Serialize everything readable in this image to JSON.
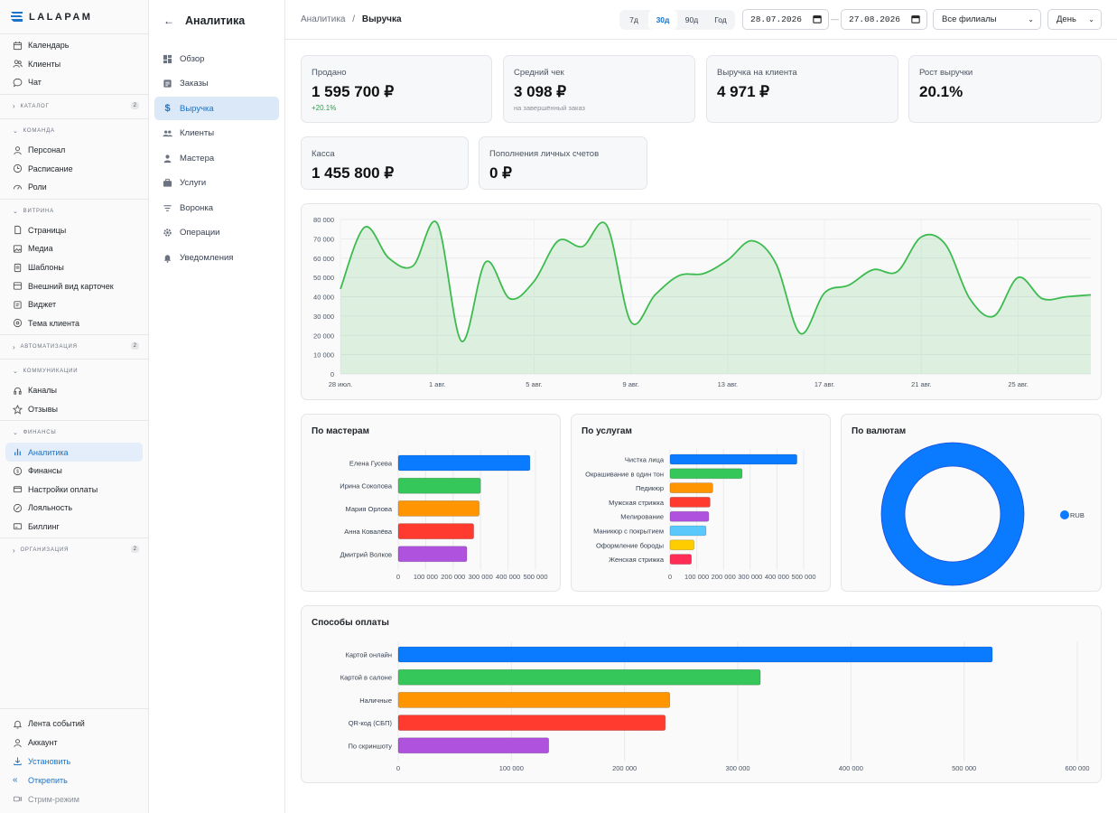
{
  "brand": {
    "name": "LALAPAM"
  },
  "nav": {
    "items_top": [
      {
        "label": "Календарь",
        "icon": "calendar-icon"
      },
      {
        "label": "Клиенты",
        "icon": "users-icon"
      },
      {
        "label": "Чат",
        "icon": "chat-icon"
      }
    ],
    "catalog": {
      "label": "КАТАЛОГ",
      "count": "2"
    },
    "team": {
      "label": "КОМАНДА",
      "items": [
        "Персонал",
        "Расписание",
        "Роли"
      ]
    },
    "showcase": {
      "label": "ВИТРИНА",
      "items": [
        "Страницы",
        "Медиа",
        "Шаблоны",
        "Внешний вид карточек",
        "Виджет",
        "Тема клиента"
      ]
    },
    "automation": {
      "label": "АВТОМАТИЗАЦИЯ",
      "count": "2"
    },
    "communications": {
      "label": "КОММУНИКАЦИИ",
      "items": [
        "Каналы",
        "Отзывы"
      ]
    },
    "finance": {
      "label": "ФИНАНСЫ",
      "items": [
        "Аналитика",
        "Финансы",
        "Настройки оплаты",
        "Лояльность",
        "Биллинг"
      ]
    },
    "organization": {
      "label": "ОРГАНИЗАЦИЯ",
      "count": "2"
    },
    "bottom": {
      "events": "Лента событий",
      "account": "Аккаунт",
      "install": "Установить",
      "unpin": "Открепить",
      "stream": "Стрим-режим"
    }
  },
  "subnav": {
    "title": "Аналитика",
    "items": [
      "Обзор",
      "Заказы",
      "Выручка",
      "Клиенты",
      "Мастера",
      "Услуги",
      "Воронка",
      "Операции",
      "Уведомления"
    ],
    "active": "Выручка"
  },
  "topbar": {
    "crumb_parent": "Аналитика",
    "crumb_sep": "/",
    "crumb_current": "Выручка",
    "periods": [
      "7д",
      "30д",
      "90д",
      "Год"
    ],
    "active_period": "30д",
    "date_from": "28.07.2026",
    "date_to": "27.08.2026",
    "date_sep": "—",
    "branch": "Все филиалы",
    "granularity": "День"
  },
  "kpis": {
    "sold": {
      "label": "Продано",
      "value": "1 595 700 ₽",
      "delta": "+20.1%"
    },
    "avg_check": {
      "label": "Средний чек",
      "value": "3 098 ₽",
      "note": "на завершённый заказ"
    },
    "per_client": {
      "label": "Выручка на клиента",
      "value": "4 971 ₽"
    },
    "growth": {
      "label": "Рост выручки",
      "value": "20.1%"
    },
    "cash": {
      "label": "Касса",
      "value": "1 455 800 ₽"
    },
    "topups": {
      "label": "Пополнения личных счетов",
      "value": "0 ₽"
    }
  },
  "colors": {
    "accent": "#1a73c8",
    "line": "#3dbb4f",
    "blue": "#0a7aff",
    "green": "#35c759",
    "orange": "#ff9500",
    "red": "#ff3b30",
    "purple": "#af52de",
    "sky": "#5ac8fa",
    "yellow": "#ffcc00",
    "pink": "#ff2d55"
  },
  "chart_data": [
    {
      "type": "area",
      "x_ticks": [
        "28 июл.",
        "1 авг.",
        "5 авг.",
        "9 авг.",
        "13 авг.",
        "17 авг.",
        "21 авг.",
        "25 авг."
      ],
      "y_ticks": [
        "0",
        "10 000",
        "20 000",
        "30 000",
        "40 000",
        "50 000",
        "60 000",
        "70 000",
        "80 000"
      ],
      "ylim": [
        0,
        80000
      ],
      "x": [
        "28 июл.",
        "29 июл.",
        "30 июл.",
        "31 июл.",
        "1 авг.",
        "2 авг.",
        "3 авг.",
        "4 авг.",
        "5 авг.",
        "6 авг.",
        "7 авг.",
        "8 авг.",
        "9 авг.",
        "10 авг.",
        "11 авг.",
        "12 авг.",
        "13 авг.",
        "14 авг.",
        "15 авг.",
        "16 авг.",
        "17 авг.",
        "18 авг.",
        "19 авг.",
        "20 авг.",
        "21 авг.",
        "22 авг.",
        "23 авг.",
        "24 авг.",
        "25 авг.",
        "26 авг.",
        "27 авг.",
        "28 авг."
      ],
      "values": [
        44000,
        76000,
        60000,
        56000,
        78000,
        17000,
        58000,
        39000,
        48000,
        69000,
        66000,
        77000,
        27000,
        41000,
        51000,
        52000,
        59000,
        69000,
        57000,
        21000,
        42000,
        46000,
        54000,
        53000,
        71000,
        67000,
        39000,
        30000,
        50000,
        39000,
        40000,
        41000
      ],
      "grid": true
    },
    {
      "type": "bar",
      "title": "По мастерам",
      "categories": [
        "Елена Гусева",
        "Ирина Соколова",
        "Мария Орлова",
        "Анна Ковалёва",
        "Дмитрий Волков"
      ],
      "values": [
        480000,
        300000,
        295000,
        275000,
        250000
      ],
      "x_ticks": [
        "0",
        "100 000",
        "200 000",
        "300 000",
        "400 000",
        "500 000"
      ],
      "xlim": [
        0,
        500000
      ]
    },
    {
      "type": "bar",
      "title": "По услугам",
      "categories": [
        "Чистка лица",
        "Окрашивание в один тон",
        "Педикюр",
        "Мужская стрижка",
        "Мелирование",
        "Маникюр с покрытием",
        "Оформление бороды",
        "Женская стрижка"
      ],
      "values": [
        475000,
        270000,
        160000,
        150000,
        145000,
        135000,
        90000,
        80000
      ],
      "x_ticks": [
        "0",
        "100 000",
        "200 000",
        "300 000",
        "400 000",
        "500 000"
      ],
      "xlim": [
        0,
        500000
      ]
    },
    {
      "type": "pie",
      "title": "По валютам",
      "categories": [
        "RUB"
      ],
      "values": [
        100
      ],
      "legend": "right"
    },
    {
      "type": "bar",
      "title": "Способы оплаты",
      "categories": [
        "Картой онлайн",
        "Картой в салоне",
        "Наличные",
        "QR-код (СБП)",
        "По скриншоту"
      ],
      "values": [
        525000,
        320000,
        240000,
        236000,
        133000
      ],
      "x_ticks": [
        "0",
        "100 000",
        "200 000",
        "300 000",
        "400 000",
        "500 000",
        "600 000"
      ],
      "xlim": [
        0,
        600000
      ]
    }
  ]
}
